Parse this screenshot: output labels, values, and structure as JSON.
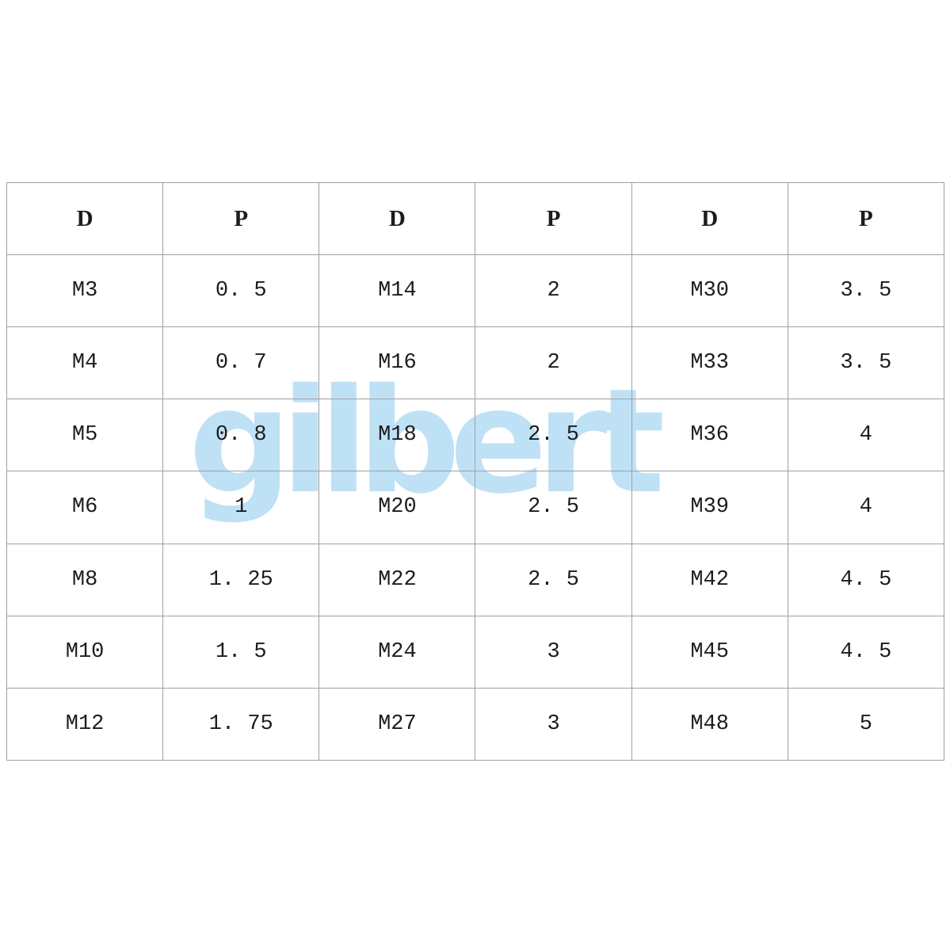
{
  "watermark": {
    "text": "gilbert",
    "color": "#bfe1f5"
  },
  "chart_data": {
    "type": "table",
    "title": "",
    "headers": [
      "D",
      "P",
      "D",
      "P",
      "D",
      "P"
    ],
    "rows": [
      [
        "M3",
        "0. 5",
        "M14",
        "2",
        "M30",
        "3. 5"
      ],
      [
        "M4",
        "0. 7",
        "M16",
        "2",
        "M33",
        "3. 5"
      ],
      [
        "M5",
        "0. 8",
        "M18",
        "2. 5",
        "M36",
        "4"
      ],
      [
        "M6",
        "1",
        "M20",
        "2. 5",
        "M39",
        "4"
      ],
      [
        "M8",
        "1. 25",
        "M22",
        "2. 5",
        "M42",
        "4. 5"
      ],
      [
        "M10",
        "1. 5",
        "M24",
        "3",
        "M45",
        "4. 5"
      ],
      [
        "M12",
        "1. 75",
        "M27",
        "3",
        "M48",
        "5"
      ]
    ],
    "layout": {
      "columns": 6,
      "grid": true,
      "border_color": "#a0a0a0",
      "text_color": "#1c1c1c"
    }
  }
}
